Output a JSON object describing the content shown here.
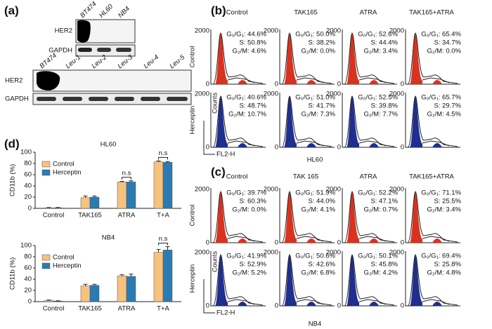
{
  "panel_labels": [
    "(a)",
    "(b)",
    "(c)",
    "(d)"
  ],
  "blot_top": {
    "lanes": [
      "BT474",
      "HL60",
      "NB4"
    ],
    "rows": [
      "HER2",
      "GAPDH"
    ]
  },
  "blot_bottom": {
    "lanes": [
      "BT474",
      "Leu-1",
      "Leu-2",
      "Leu-3",
      "Leu-4",
      "Leu-5"
    ],
    "rows": [
      "HER2",
      "GAPDH"
    ]
  },
  "flow": [
    {
      "cell_line": "HL60",
      "columns": [
        "Control",
        "TAK165",
        "ATRA",
        "TAK165+ATRA"
      ],
      "y_max": "2000",
      "y_min": "0",
      "y_label": "Counts",
      "x_label": "FL2-H",
      "rows": [
        {
          "name": "Control",
          "cells": [
            [
              "G₀/G₁: 44.6%",
              "S: 50.8%",
              "G₂/M: 4.6%"
            ],
            [
              "G₀/G₁: 50.0%",
              "S: 38.2%",
              "G₂/M: 0.0%"
            ],
            [
              "G₀/G₁: 52.6%",
              "S: 44.4%",
              "G₂/M: 3.4%"
            ],
            [
              "G₀/G₁: 65.4%",
              "S: 34.7%",
              "G₂/M: 0.0%"
            ]
          ]
        },
        {
          "name": "Herceptin",
          "cells": [
            [
              "G₀/G₁: 40.6%",
              "S: 48.7%",
              "G₂/M: 10.7%"
            ],
            [
              "G₀/G₁: 51.0%",
              "S: 41.7%",
              "G₂/M: 7.3%"
            ],
            [
              "G₀/G₁: 52.5%",
              "S: 39.8%",
              "G₂/M: 7.7%"
            ],
            [
              "G₀/G₁: 65.7%",
              "S: 29.7%",
              "G₂/M: 4.5%"
            ]
          ]
        }
      ]
    },
    {
      "cell_line": "NB4",
      "columns": [
        "Control",
        "TAK 165",
        "ATRA",
        "TAK165+ATRA"
      ],
      "y_max": "2000",
      "y_min": "0",
      "y_label": "Counts",
      "x_label": "FL2-H",
      "rows": [
        {
          "name": "Control",
          "cells": [
            [
              "G₀/G₁: 39.7%",
              "S: 60.3%",
              "G₂/M: 0.0%"
            ],
            [
              "G₀/G₁: 51.9%",
              "S: 44.0%",
              "G₂/M: 4.1%"
            ],
            [
              "G₀/G₁: 52.2%",
              "S: 47.1%",
              "G₂/M: 0.7%"
            ],
            [
              "G₀/G₁: 71.1%",
              "S: 25.5%",
              "G₂/M: 3.4%"
            ]
          ]
        },
        {
          "name": "Herceptin",
          "cells": [
            [
              "G₀/G₁: 41.9%",
              "S: 52.9%",
              "G₂/M: 5.2%"
            ],
            [
              "G₀/G₁: 50.6%",
              "S: 42.6%",
              "G₂/M: 6.8%"
            ],
            [
              "G₀/G₁: 50.1%",
              "S: 45.8%",
              "G₂/M: 4.2%"
            ],
            [
              "G₀/G₁: 69.4%",
              "S: 25.8%",
              "G₂/M: 4.8%"
            ]
          ]
        }
      ]
    }
  ],
  "chart_data": [
    {
      "type": "bar",
      "title": "HL60",
      "y_label": "CD11b (%)",
      "categories": [
        "Control",
        "TAK165",
        "ATRA",
        "T+A"
      ],
      "series": [
        {
          "name": "Control",
          "color": "#f6c27e",
          "values": [
            1,
            19,
            47,
            83
          ],
          "errors": [
            0.5,
            3,
            1,
            1.5
          ]
        },
        {
          "name": "Herceptin",
          "color": "#2b7bb3",
          "values": [
            1,
            20,
            47,
            82
          ],
          "errors": [
            0.5,
            2,
            2,
            1.5
          ]
        }
      ],
      "ylim": [
        0,
        100
      ],
      "yticks": [
        0,
        20,
        40,
        60,
        80,
        100
      ],
      "legend": "top-left",
      "annotations": [
        {
          "label": "n.s",
          "category": "ATRA"
        },
        {
          "label": "n.s",
          "category": "T+A"
        }
      ]
    },
    {
      "type": "bar",
      "title": "NB4",
      "y_label": "CD11b (%)",
      "categories": [
        "Control",
        "TAK165",
        "ATRA",
        "T+A"
      ],
      "series": [
        {
          "name": "Control",
          "color": "#f6c27e",
          "values": [
            2,
            28,
            46,
            88
          ],
          "errors": [
            1,
            3,
            2,
            5
          ]
        },
        {
          "name": "Herceptin",
          "color": "#2b7bb3",
          "values": [
            1,
            29,
            45,
            92
          ],
          "errors": [
            0.5,
            2,
            4,
            6
          ]
        }
      ],
      "ylim": [
        0,
        100
      ],
      "yticks": [
        0,
        20,
        40,
        60,
        80,
        100
      ],
      "legend": "top-left",
      "annotations": [
        {
          "label": "n.s",
          "category": "T+A"
        }
      ]
    }
  ]
}
